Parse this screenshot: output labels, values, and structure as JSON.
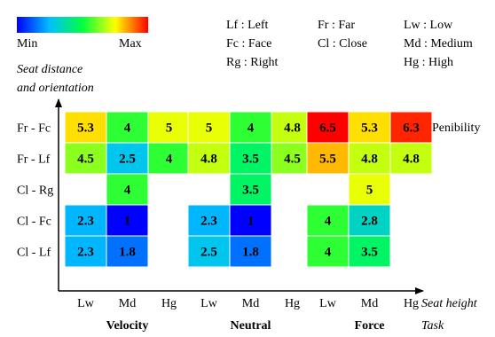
{
  "chart_data": {
    "type": "heatmap",
    "colorbar": {
      "min_label": "Min",
      "max_label": "Max"
    },
    "legend": [
      {
        "text": "Lf : Left"
      },
      {
        "text": "Fc : Face"
      },
      {
        "text": "Rg : Right"
      },
      {
        "text": "Fr : Far"
      },
      {
        "text": "Cl : Close"
      },
      {
        "text": "Lw : Low"
      },
      {
        "text": "Md : Medium"
      },
      {
        "text": "Hg : High"
      }
    ],
    "ylabel_line1": "Seat distance",
    "ylabel_line2": "and orientation",
    "xlabel": "Seat height",
    "task_label": "Task",
    "rows": [
      "Fr - Fc",
      "Fr - Lf",
      "Cl - Rg",
      "Cl - Fc",
      "Cl - Lf"
    ],
    "columns": [
      "Lw",
      "Md",
      "Hg"
    ],
    "annotation": "Penibility",
    "value_range": [
      1,
      6.5
    ],
    "groups": [
      {
        "task": "Velocity",
        "values": [
          [
            5.3,
            4,
            5
          ],
          [
            4.5,
            2.5,
            4
          ],
          [
            null,
            4,
            null
          ],
          [
            2.3,
            1,
            null
          ],
          [
            2.3,
            1.8,
            null
          ]
        ]
      },
      {
        "task": "Neutral",
        "values": [
          [
            5,
            4,
            4.8
          ],
          [
            4.8,
            3.5,
            4.5
          ],
          [
            null,
            3.5,
            null
          ],
          [
            2.3,
            1,
            null
          ],
          [
            2.5,
            1.8,
            null
          ]
        ]
      },
      {
        "task": "Force",
        "values": [
          [
            6.5,
            5.3,
            6.3
          ],
          [
            5.5,
            4.8,
            4.8
          ],
          [
            null,
            5,
            null
          ],
          [
            4,
            2.8,
            null
          ],
          [
            4,
            3.5,
            null
          ]
        ]
      }
    ]
  }
}
